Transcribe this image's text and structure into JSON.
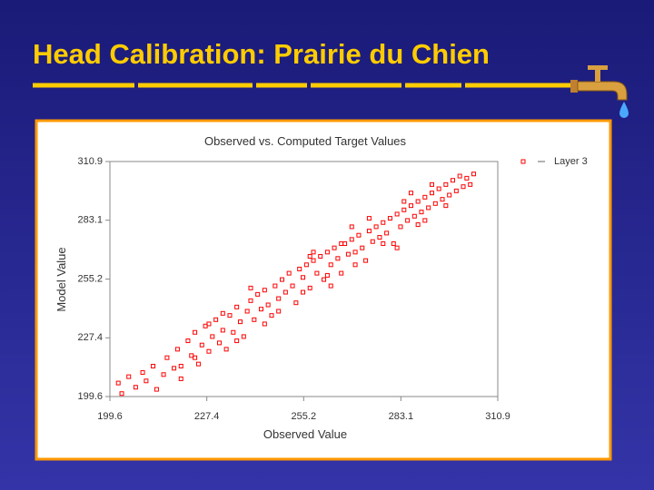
{
  "header": {
    "title": "Head Calibration: Prairie du Chien"
  },
  "chart_data": {
    "type": "scatter",
    "title": "Observed vs. Computed Target Values",
    "x_label": "Observed Value",
    "y_label": "Model Value",
    "xlim": [
      199.6,
      310.9
    ],
    "ylim": [
      199.6,
      310.9
    ],
    "xticks": [
      199.6,
      227.4,
      255.2,
      283.1,
      310.9
    ],
    "yticks": [
      199.6,
      227.4,
      255.2,
      283.1,
      310.9
    ],
    "legend": "top-right",
    "grid": false,
    "series": [
      {
        "name": "Layer 3",
        "color": "#ff0000",
        "x": [
          202,
          203,
          205,
          207,
          209,
          210,
          212,
          213,
          215,
          216,
          218,
          219,
          220,
          222,
          223,
          224,
          225,
          226,
          227,
          228,
          229,
          230,
          231,
          232,
          233,
          234,
          235,
          236,
          237,
          238,
          239,
          240,
          241,
          242,
          243,
          244,
          245,
          246,
          247,
          248,
          249,
          250,
          251,
          252,
          253,
          254,
          255,
          256,
          257,
          258,
          259,
          260,
          261,
          262,
          263,
          264,
          265,
          266,
          267,
          268,
          269,
          270,
          271,
          272,
          273,
          274,
          275,
          276,
          277,
          278,
          279,
          280,
          281,
          282,
          283,
          284,
          285,
          286,
          287,
          288,
          289,
          290,
          291,
          292,
          293,
          294,
          295,
          296,
          297,
          298,
          299,
          300,
          301,
          302,
          303,
          304,
          255,
          258,
          262,
          266,
          270,
          274,
          278,
          284,
          288,
          292,
          248,
          244,
          240,
          236,
          232,
          228,
          224,
          220,
          282,
          286,
          290,
          296,
          269,
          263,
          257
        ],
        "values": [
          206,
          201,
          209,
          204,
          211,
          207,
          214,
          203,
          210,
          218,
          213,
          222,
          208,
          226,
          219,
          230,
          215,
          224,
          233,
          221,
          228,
          236,
          225,
          231,
          222,
          238,
          230,
          242,
          235,
          228,
          240,
          245,
          236,
          248,
          241,
          250,
          243,
          238,
          252,
          246,
          255,
          249,
          258,
          252,
          244,
          260,
          256,
          262,
          251,
          264,
          258,
          266,
          255,
          268,
          262,
          270,
          265,
          258,
          272,
          267,
          274,
          268,
          276,
          270,
          264,
          278,
          273,
          280,
          275,
          282,
          277,
          284,
          272,
          286,
          280,
          288,
          283,
          290,
          285,
          292,
          287,
          294,
          289,
          296,
          291,
          298,
          293,
          300,
          295,
          302,
          297,
          304,
          299,
          303,
          300,
          305,
          249,
          268,
          257,
          272,
          262,
          284,
          272,
          292,
          281,
          300,
          240,
          234,
          251,
          226,
          239,
          234,
          218,
          214,
          270,
          296,
          283,
          290,
          280,
          252,
          266
        ]
      }
    ]
  }
}
